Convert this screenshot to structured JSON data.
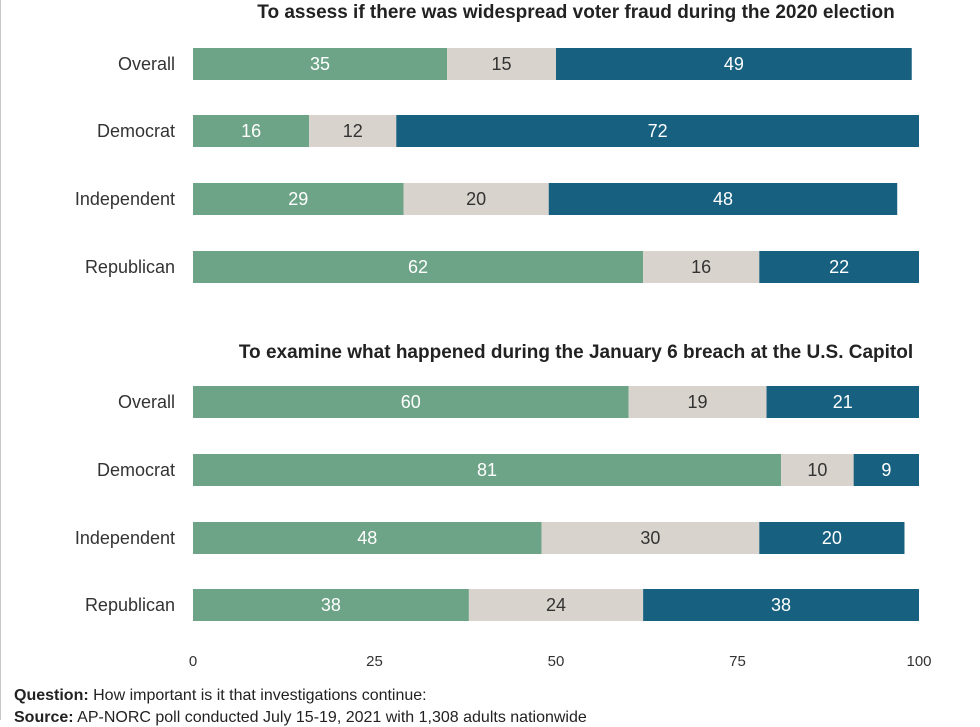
{
  "panels": [
    {
      "title": "To assess if there was widespread voter fraud during the 2020 election",
      "categories": [
        "Overall",
        "Democrat",
        "Independent",
        "Republican"
      ],
      "series": [
        {
          "values": [
            35,
            16,
            29,
            62
          ],
          "color": "#6da386"
        },
        {
          "values": [
            15,
            12,
            20,
            16
          ],
          "color": "#d8d3cd"
        },
        {
          "values": [
            49,
            72,
            48,
            22
          ],
          "color": "#17607f"
        }
      ]
    },
    {
      "title": "To examine what happened during the January 6 breach at the U.S. Capitol",
      "categories": [
        "Overall",
        "Democrat",
        "Independent",
        "Republican"
      ],
      "series": [
        {
          "values": [
            60,
            81,
            48,
            38
          ],
          "color": "#6da386"
        },
        {
          "values": [
            19,
            10,
            30,
            24
          ],
          "color": "#d8d3cd"
        },
        {
          "values": [
            21,
            9,
            20,
            38
          ],
          "color": "#17607f"
        }
      ]
    }
  ],
  "chart_data": {
    "type": "bar",
    "orientation": "horizontal",
    "stacked": true,
    "xlim": [
      0,
      100
    ],
    "xticks": [
      "0",
      "25",
      "50",
      "75",
      "100"
    ],
    "grid": false,
    "legend": "none",
    "charts": [
      {
        "title": "To assess if there was widespread voter fraud during the 2020 election",
        "categories": [
          "Overall",
          "Democrat",
          "Independent",
          "Republican"
        ],
        "series": [
          {
            "values": [
              35,
              16,
              29,
              62
            ]
          },
          {
            "values": [
              15,
              12,
              20,
              16
            ]
          },
          {
            "values": [
              49,
              72,
              48,
              22
            ]
          }
        ]
      },
      {
        "title": "To examine what happened during the January 6 breach at the U.S. Capitol",
        "categories": [
          "Overall",
          "Democrat",
          "Independent",
          "Republican"
        ],
        "series": [
          {
            "values": [
              60,
              81,
              48,
              38
            ]
          },
          {
            "values": [
              19,
              10,
              30,
              24
            ]
          },
          {
            "values": [
              21,
              9,
              20,
              38
            ]
          }
        ]
      }
    ]
  },
  "footer": {
    "question_label": "Question:",
    "question_text": "How important is it that investigations continue:",
    "source_label": "Source:",
    "source_text": "AP-NORC poll conducted July 15-19, 2021 with 1,308 adults nationwide"
  }
}
